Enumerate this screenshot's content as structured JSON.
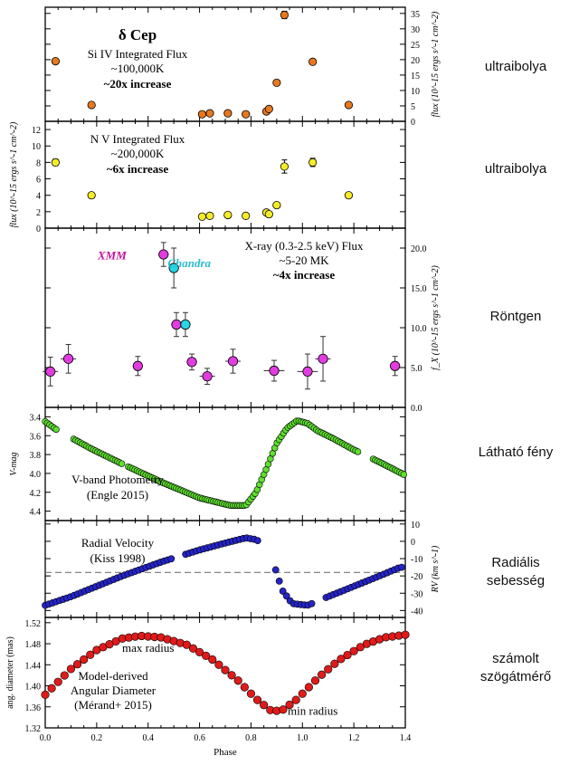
{
  "side_labels": {
    "p1": "ultraibolya",
    "p2": "ultraibolya",
    "p3": "Röntgen",
    "p4": "Látható fény",
    "p5a": "Radiális",
    "p5b": "sebesség",
    "p6a": "számolt",
    "p6b": "szögátmérő"
  },
  "chart_data": [
    {
      "id": "p1",
      "type": "scatter",
      "title": "δ Cep",
      "annotation": [
        "Si IV Integrated Flux",
        "~100,000K",
        "~20x increase"
      ],
      "ylabel": "flux (10^-15 ergs s^-1 cm^-2)",
      "ylabel_side": "right",
      "ylim": [
        0,
        37
      ],
      "yticks": [
        0,
        5,
        10,
        15,
        20,
        25,
        30,
        35
      ],
      "marker_color": "#e8781e",
      "points": [
        {
          "x": 0.04,
          "y": 19.5
        },
        {
          "x": 0.18,
          "y": 5.3
        },
        {
          "x": 0.61,
          "y": 2.3
        },
        {
          "x": 0.64,
          "y": 2.6
        },
        {
          "x": 0.71,
          "y": 2.6
        },
        {
          "x": 0.78,
          "y": 2.3
        },
        {
          "x": 0.86,
          "y": 3.2
        },
        {
          "x": 0.87,
          "y": 4.0
        },
        {
          "x": 0.9,
          "y": 12.5
        },
        {
          "x": 0.93,
          "y": 34.5,
          "err": 1.2
        },
        {
          "x": 1.04,
          "y": 19.3
        },
        {
          "x": 1.18,
          "y": 5.3
        }
      ]
    },
    {
      "id": "p2",
      "type": "scatter",
      "annotation": [
        "N V Integrated Flux",
        "~200,000K",
        "~6x increase"
      ],
      "ylabel": "flux (10^-15 ergs s^-1 cm^-2)",
      "ylabel_side": "left",
      "ylim": [
        0,
        13
      ],
      "yticks": [
        0,
        2,
        4,
        6,
        8,
        10,
        12
      ],
      "marker_color": "#f4ec26",
      "points": [
        {
          "x": 0.04,
          "y": 8.0,
          "err": 0.4
        },
        {
          "x": 0.18,
          "y": 4.0
        },
        {
          "x": 0.61,
          "y": 1.4
        },
        {
          "x": 0.64,
          "y": 1.5
        },
        {
          "x": 0.71,
          "y": 1.6
        },
        {
          "x": 0.78,
          "y": 1.5
        },
        {
          "x": 0.86,
          "y": 1.9
        },
        {
          "x": 0.87,
          "y": 1.7
        },
        {
          "x": 0.9,
          "y": 2.8
        },
        {
          "x": 0.93,
          "y": 7.5,
          "err": 0.8
        },
        {
          "x": 1.04,
          "y": 8.0,
          "err": 0.5
        },
        {
          "x": 1.18,
          "y": 4.0
        }
      ]
    },
    {
      "id": "p3",
      "type": "scatter",
      "annotation": [
        "X-ray (0.3-2.5 keV) Flux",
        "~5-20 MK",
        "~4x increase"
      ],
      "series_labels": [
        {
          "name": "XMM",
          "color": "#c4139c",
          "x": 0.26,
          "y": 18.6
        },
        {
          "name": "Chandra",
          "color": "#2bbccc",
          "x": 0.56,
          "y": 17.6
        }
      ],
      "ylabel": "f_X (10^-15 ergs s^-1 cm^-2)",
      "ylabel_side": "right",
      "ylim": [
        0,
        22.5
      ],
      "yticks": [
        0.0,
        5.0,
        10.0,
        15.0,
        20.0
      ],
      "series": [
        {
          "name": "XMM",
          "color": "#e23ce0",
          "points": [
            {
              "x": 0.02,
              "y": 4.5,
              "xerr": 0.03,
              "yerr": 1.8
            },
            {
              "x": 0.09,
              "y": 6.1,
              "xerr": 0.03,
              "yerr": 1.8
            },
            {
              "x": 0.36,
              "y": 5.2,
              "xerr": 0.02,
              "yerr": 1.2
            },
            {
              "x": 0.46,
              "y": 19.2,
              "xerr": 0.02,
              "yerr": 1.5
            },
            {
              "x": 0.51,
              "y": 10.4,
              "xerr": 0.02,
              "yerr": 1.5
            },
            {
              "x": 0.57,
              "y": 5.7,
              "xerr": 0.02,
              "yerr": 1.0
            },
            {
              "x": 0.63,
              "y": 3.9,
              "xerr": 0.03,
              "yerr": 1.0
            },
            {
              "x": 0.73,
              "y": 5.8,
              "xerr": 0.03,
              "yerr": 1.5
            },
            {
              "x": 0.89,
              "y": 4.6,
              "xerr": 0.04,
              "yerr": 1.3
            },
            {
              "x": 1.02,
              "y": 4.5,
              "xerr": 0.04,
              "yerr": 2.2
            },
            {
              "x": 1.08,
              "y": 6.1,
              "xerr": 0.03,
              "yerr": 2.8
            },
            {
              "x": 1.36,
              "y": 5.2,
              "xerr": 0.02,
              "yerr": 1.2
            }
          ]
        },
        {
          "name": "Chandra",
          "color": "#27d6e3",
          "points": [
            {
              "x": 0.5,
              "y": 17.5,
              "xerr": 0.0,
              "yerr": 2.5
            },
            {
              "x": 0.545,
              "y": 10.4,
              "xerr": 0.02,
              "yerr": 1.5
            }
          ]
        }
      ]
    },
    {
      "id": "p4",
      "type": "line",
      "annotation": [
        "V-band Photometry",
        "(Engle 2015)"
      ],
      "ylabel": "V-mag",
      "ylabel_side": "left",
      "ylim": [
        3.3,
        4.5
      ],
      "y_reversed": true,
      "yticks": [
        3.4,
        3.6,
        3.8,
        4.0,
        4.2,
        4.4
      ],
      "marker_color": "#5de02e",
      "curve": [
        {
          "x": 0.0,
          "y": 3.45
        },
        {
          "x": 0.04,
          "y": 3.53
        },
        {
          "x": 0.1,
          "y": 3.62
        },
        {
          "x": 0.18,
          "y": 3.74
        },
        {
          "x": 0.3,
          "y": 3.9
        },
        {
          "x": 0.45,
          "y": 4.09
        },
        {
          "x": 0.6,
          "y": 4.26
        },
        {
          "x": 0.72,
          "y": 4.34
        },
        {
          "x": 0.78,
          "y": 4.34
        },
        {
          "x": 0.82,
          "y": 4.2
        },
        {
          "x": 0.86,
          "y": 3.95
        },
        {
          "x": 0.9,
          "y": 3.68
        },
        {
          "x": 0.94,
          "y": 3.52
        },
        {
          "x": 0.98,
          "y": 3.44
        },
        {
          "x": 1.02,
          "y": 3.47
        },
        {
          "x": 1.06,
          "y": 3.55
        },
        {
          "x": 1.12,
          "y": 3.63
        },
        {
          "x": 1.2,
          "y": 3.75
        },
        {
          "x": 1.3,
          "y": 3.88
        },
        {
          "x": 1.4,
          "y": 4.02
        }
      ],
      "gaps": [
        [
          0.05,
          0.11
        ],
        [
          0.3,
          0.32
        ],
        [
          1.22,
          1.27
        ]
      ]
    },
    {
      "id": "p5",
      "type": "line",
      "annotation": [
        "Radial Velocity",
        "(Kiss 1998)"
      ],
      "ylabel": "RV (km s^-1)",
      "ylabel_side": "right",
      "ylim": [
        -44,
        12
      ],
      "yticks": [
        -40,
        -30,
        -20,
        -10,
        0,
        10
      ],
      "reference_line": -18,
      "marker_color": "#2424c8",
      "curve": [
        {
          "x": 0.0,
          "y": -37
        },
        {
          "x": 0.1,
          "y": -32
        },
        {
          "x": 0.2,
          "y": -26
        },
        {
          "x": 0.3,
          "y": -20
        },
        {
          "x": 0.45,
          "y": -12
        },
        {
          "x": 0.6,
          "y": -5
        },
        {
          "x": 0.7,
          "y": -1
        },
        {
          "x": 0.78,
          "y": 2
        },
        {
          "x": 0.82,
          "y": 1
        },
        {
          "x": 0.86,
          "y": -3
        },
        {
          "x": 0.9,
          "y": -18
        },
        {
          "x": 0.92,
          "y": -28
        },
        {
          "x": 0.96,
          "y": -36
        },
        {
          "x": 1.02,
          "y": -37
        },
        {
          "x": 1.1,
          "y": -32
        },
        {
          "x": 1.2,
          "y": -26
        },
        {
          "x": 1.3,
          "y": -20
        },
        {
          "x": 1.38,
          "y": -15
        }
      ],
      "gaps": [
        [
          0.84,
          0.895
        ],
        [
          0.5,
          0.54
        ],
        [
          1.05,
          1.08
        ]
      ]
    },
    {
      "id": "p6",
      "type": "line",
      "annotation": [
        "Model-derived",
        "Angular Diameter",
        "(Mérand+ 2015)"
      ],
      "notes": [
        {
          "text": "max radius",
          "x": 0.4,
          "y": 1.465
        },
        {
          "text": "min radius",
          "x": 1.04,
          "y": 1.345
        }
      ],
      "ylabel": "ang. diameter (mas)",
      "ylabel_side": "left",
      "ylim": [
        1.32,
        1.53
      ],
      "yticks": [
        1.32,
        1.36,
        1.4,
        1.44,
        1.48,
        1.52
      ],
      "xlabel": "Phase",
      "xlim": [
        0.0,
        1.4
      ],
      "xticks": [
        "0.0",
        "0.2",
        "0.4",
        "0.6",
        "0.8",
        "1.0",
        "1.2",
        "1.4"
      ],
      "marker_color": "#e01a1a",
      "curve": [
        {
          "x": 0.0,
          "y": 1.383
        },
        {
          "x": 0.1,
          "y": 1.432
        },
        {
          "x": 0.2,
          "y": 1.468
        },
        {
          "x": 0.3,
          "y": 1.49
        },
        {
          "x": 0.37,
          "y": 1.495
        },
        {
          "x": 0.45,
          "y": 1.492
        },
        {
          "x": 0.55,
          "y": 1.478
        },
        {
          "x": 0.65,
          "y": 1.45
        },
        {
          "x": 0.75,
          "y": 1.41
        },
        {
          "x": 0.82,
          "y": 1.375
        },
        {
          "x": 0.88,
          "y": 1.352
        },
        {
          "x": 0.92,
          "y": 1.353
        },
        {
          "x": 0.98,
          "y": 1.375
        },
        {
          "x": 1.06,
          "y": 1.415
        },
        {
          "x": 1.14,
          "y": 1.448
        },
        {
          "x": 1.24,
          "y": 1.478
        },
        {
          "x": 1.32,
          "y": 1.492
        },
        {
          "x": 1.4,
          "y": 1.497
        }
      ]
    }
  ]
}
